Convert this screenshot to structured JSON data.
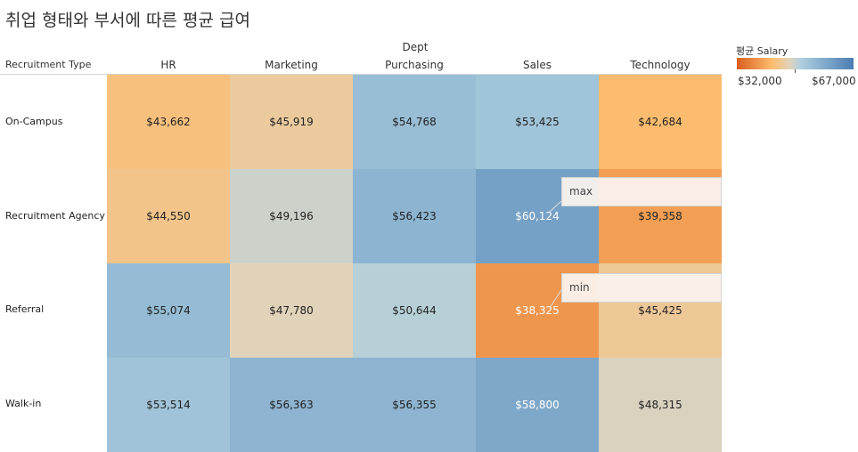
{
  "title": "취업 형태와 부서에 따른 평균 급여",
  "colors": {
    "low": "#d95f20",
    "mid_warm": "#fdbb6c",
    "mid_neutral": "#e1d3b9",
    "mid_cool": "#aecfdf",
    "high": "#4a7db3"
  },
  "legend": {
    "title": "평균 Salary",
    "min_label": "$32,000",
    "max_label": "$67,000",
    "min": 32000,
    "max": 67000
  },
  "annotations": [
    {
      "label": "max",
      "row": "Recruitment Agency",
      "col": "Sales"
    },
    {
      "label": "min",
      "row": "Referral",
      "col": "Sales"
    }
  ],
  "chart_data": {
    "type": "heatmap",
    "title": "취업 형태와 부서에 따른 평균 급여",
    "col_field": "Dept",
    "row_field": "Recruitment Type",
    "columns": [
      "HR",
      "Marketing",
      "Purchasing",
      "Sales",
      "Technology"
    ],
    "rows": [
      "On-Campus",
      "Recruitment Agency",
      "Referral",
      "Walk-in"
    ],
    "values": [
      [
        43662,
        45919,
        54768,
        53425,
        42684
      ],
      [
        44550,
        49196,
        56423,
        60124,
        39358
      ],
      [
        55074,
        47780,
        50644,
        38325,
        45425
      ],
      [
        53514,
        56363,
        56355,
        58800,
        48315
      ]
    ],
    "labels": [
      [
        "$43,662",
        "$45,919",
        "$54,768",
        "$53,425",
        "$42,684"
      ],
      [
        "$44,550",
        "$49,196",
        "$56,423",
        "$60,124",
        "$39,358"
      ],
      [
        "$55,074",
        "$47,780",
        "$50,644",
        "$38,325",
        "$45,425"
      ],
      [
        "$53,514",
        "$56,363",
        "$56,355",
        "$58,800",
        "$48,315"
      ]
    ],
    "color_range": [
      32000,
      67000
    ]
  }
}
